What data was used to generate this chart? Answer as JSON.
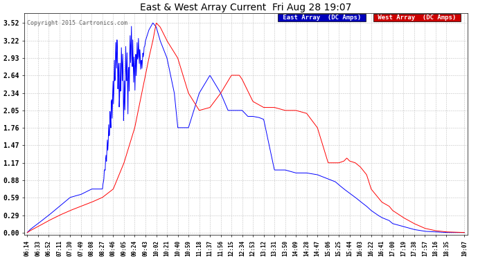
{
  "title": "East & West Array Current  Fri Aug 28 19:07",
  "copyright": "Copyright 2015 Cartronics.com",
  "legend_east": "East Array  (DC Amps)",
  "legend_west": "West Array  (DC Amps)",
  "east_color": "#0000ff",
  "west_color": "#ff0000",
  "legend_east_bg": "#0000bb",
  "legend_west_bg": "#cc0000",
  "background_color": "#ffffff",
  "grid_color": "#bbbbbb",
  "yticks": [
    0.0,
    0.29,
    0.59,
    0.88,
    1.17,
    1.47,
    1.76,
    2.05,
    2.34,
    2.64,
    2.93,
    3.22,
    3.52
  ],
  "ylim": [
    -0.04,
    3.68
  ],
  "xtick_labels": [
    "06:14",
    "06:33",
    "06:52",
    "07:11",
    "07:30",
    "07:49",
    "08:08",
    "08:27",
    "08:46",
    "09:05",
    "09:24",
    "09:43",
    "10:02",
    "10:21",
    "10:40",
    "10:59",
    "11:18",
    "11:37",
    "11:56",
    "12:15",
    "12:34",
    "12:53",
    "13:12",
    "13:31",
    "13:50",
    "14:09",
    "14:28",
    "14:47",
    "15:06",
    "15:25",
    "15:44",
    "16:03",
    "16:22",
    "16:41",
    "17:00",
    "17:19",
    "17:38",
    "17:57",
    "18:16",
    "18:35",
    "19:07"
  ]
}
